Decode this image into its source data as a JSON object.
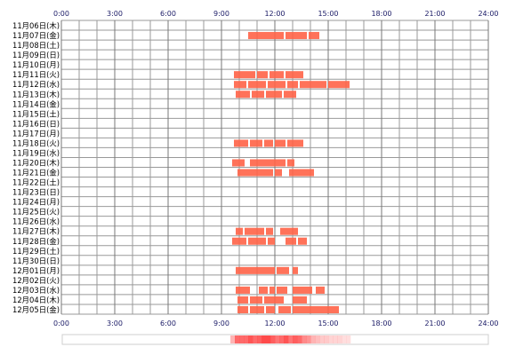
{
  "chart_data": {
    "type": "timeline",
    "title": "",
    "x_unit": "hour of day",
    "xlim": [
      0,
      24
    ],
    "x_ticks": [
      "0:00",
      "3:00",
      "6:00",
      "9:00",
      "12:00",
      "15:00",
      "18:00",
      "21:00",
      "24:00"
    ],
    "grid": true,
    "rows": [
      {
        "label": "11月06日(木)",
        "intervals": []
      },
      {
        "label": "11月07日(金)",
        "intervals": [
          [
            10.5,
            12.5
          ],
          [
            12.6,
            13.8
          ],
          [
            13.9,
            14.5
          ]
        ]
      },
      {
        "label": "11月08日(土)",
        "intervals": []
      },
      {
        "label": "11月09日(日)",
        "intervals": []
      },
      {
        "label": "11月10日(月)",
        "intervals": []
      },
      {
        "label": "11月11日(火)",
        "intervals": [
          [
            9.7,
            10.9
          ],
          [
            11.0,
            11.6
          ],
          [
            11.7,
            12.5
          ],
          [
            12.6,
            13.6
          ]
        ]
      },
      {
        "label": "11月12日(水)",
        "intervals": [
          [
            9.7,
            10.4
          ],
          [
            10.5,
            11.5
          ],
          [
            11.6,
            12.6
          ],
          [
            12.7,
            13.3
          ],
          [
            13.4,
            14.9
          ],
          [
            15.0,
            16.2
          ]
        ]
      },
      {
        "label": "11月13日(木)",
        "intervals": [
          [
            9.8,
            10.6
          ],
          [
            10.7,
            11.4
          ],
          [
            11.5,
            12.4
          ],
          [
            12.5,
            13.2
          ]
        ]
      },
      {
        "label": "11月14日(金)",
        "intervals": []
      },
      {
        "label": "11月15日(土)",
        "intervals": []
      },
      {
        "label": "11月16日(日)",
        "intervals": []
      },
      {
        "label": "11月17日(月)",
        "intervals": []
      },
      {
        "label": "11月18日(火)",
        "intervals": [
          [
            9.7,
            10.5
          ],
          [
            10.6,
            11.3
          ],
          [
            11.4,
            11.9
          ],
          [
            12.0,
            12.6
          ],
          [
            12.7,
            13.6
          ]
        ]
      },
      {
        "label": "11月19日(水)",
        "intervals": []
      },
      {
        "label": "11月20日(木)",
        "intervals": [
          [
            9.6,
            10.3
          ],
          [
            10.6,
            12.6
          ],
          [
            12.7,
            13.1
          ]
        ]
      },
      {
        "label": "11月21日(金)",
        "intervals": [
          [
            9.9,
            11.9
          ],
          [
            12.0,
            12.4
          ],
          [
            12.8,
            14.2
          ]
        ]
      },
      {
        "label": "11月22日(土)",
        "intervals": []
      },
      {
        "label": "11月23日(日)",
        "intervals": []
      },
      {
        "label": "11月24日(月)",
        "intervals": []
      },
      {
        "label": "11月25日(火)",
        "intervals": []
      },
      {
        "label": "11月26日(水)",
        "intervals": []
      },
      {
        "label": "11月27日(木)",
        "intervals": [
          [
            9.8,
            10.2
          ],
          [
            10.3,
            11.4
          ],
          [
            11.5,
            11.9
          ],
          [
            12.3,
            13.3
          ]
        ]
      },
      {
        "label": "11月28日(金)",
        "intervals": [
          [
            9.6,
            10.4
          ],
          [
            10.5,
            11.5
          ],
          [
            11.6,
            12.0
          ],
          [
            12.6,
            13.2
          ],
          [
            13.3,
            13.8
          ]
        ]
      },
      {
        "label": "11月29日(土)",
        "intervals": []
      },
      {
        "label": "11月30日(日)",
        "intervals": []
      },
      {
        "label": "12月01日(月)",
        "intervals": [
          [
            9.8,
            12.0
          ],
          [
            12.1,
            12.8
          ],
          [
            13.0,
            13.3
          ]
        ]
      },
      {
        "label": "12月02日(火)",
        "intervals": []
      },
      {
        "label": "12月03日(水)",
        "intervals": [
          [
            9.8,
            10.6
          ],
          [
            11.1,
            11.6
          ],
          [
            11.7,
            12.0
          ],
          [
            12.1,
            12.7
          ],
          [
            13.0,
            14.1
          ],
          [
            14.3,
            14.8
          ]
        ]
      },
      {
        "label": "12月04日(木)",
        "intervals": [
          [
            9.9,
            10.5
          ],
          [
            10.6,
            11.3
          ],
          [
            11.4,
            12.5
          ],
          [
            13.0,
            13.8
          ]
        ]
      },
      {
        "label": "12月05日(金)",
        "intervals": [
          [
            9.9,
            10.5
          ],
          [
            10.6,
            11.4
          ],
          [
            11.5,
            12.0
          ],
          [
            12.2,
            12.9
          ],
          [
            13.0,
            15.6
          ]
        ]
      }
    ],
    "bar_color": "#ff6347",
    "grid_color": "#999999",
    "tick_color": "#1a1a66",
    "heat_color": "#ff4a4a"
  }
}
